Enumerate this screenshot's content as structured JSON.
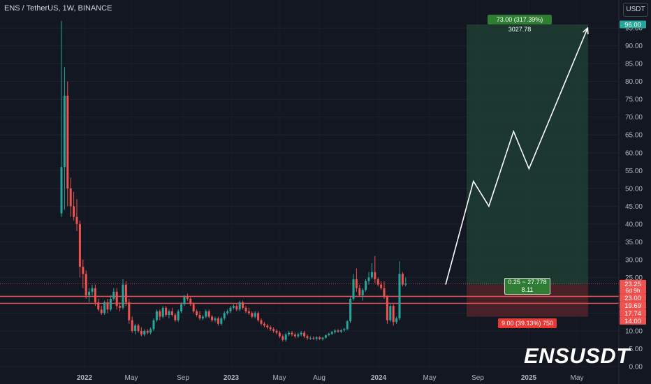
{
  "header": {
    "symbol_title": "ENS / TetherUS, 1W, BINANCE"
  },
  "currency_button": "USDT",
  "watermark": "ENSUSDT",
  "chart_data": {
    "type": "candlestick",
    "title": "ENS / TetherUS, 1W, BINANCE",
    "y_axis": {
      "ticks": [
        "0.00",
        "5.00",
        "10.00",
        "15.00",
        "20.00",
        "25.00",
        "30.00",
        "35.00",
        "40.00",
        "45.00",
        "50.00",
        "55.00",
        "60.00",
        "65.00",
        "70.00",
        "75.00",
        "80.00",
        "85.00",
        "90.00",
        "95.00"
      ],
      "range": [
        -0.5,
        98
      ]
    },
    "x_axis": {
      "ticks": [
        "2022",
        "May",
        "Sep",
        "2023",
        "May",
        "Aug",
        "2024",
        "May",
        "Sep",
        "2025",
        "May"
      ]
    },
    "colors": {
      "up": "#26a69a",
      "down": "#ef5350",
      "profit_zone": "#1e3d33",
      "loss_zone": "#4a2228",
      "accent_green": "#2e7d32",
      "accent_red": "#e53935",
      "arrow": "#ffffff"
    },
    "price_markers": [
      {
        "price": 96.0,
        "label": "96.00",
        "color": "#26a69a"
      },
      {
        "price": 23.25,
        "label": "23.25",
        "sublabel": "6d 9h",
        "color": "#ef5350"
      },
      {
        "price": 23.0,
        "label": "23.00",
        "color": "#ef5350"
      },
      {
        "price": 19.69,
        "label": "19.69",
        "color": "#ef5350"
      },
      {
        "price": 17.74,
        "label": "17.74",
        "color": "#ef5350"
      },
      {
        "price": 14.0,
        "label": "14.00",
        "color": "#ef5350"
      }
    ],
    "horizontal_lines": [
      {
        "price": 19.69,
        "color": "#ef5350"
      },
      {
        "price": 17.74,
        "color": "#ef5350"
      }
    ],
    "dotted_line": {
      "price": 23.25,
      "color": "#ef5350"
    },
    "position_tool": {
      "entry": 23.0,
      "target": 96.0,
      "stop": 14.0,
      "target_label": "73.00 (317.39%) 3027.78",
      "stop_label": "9.00 (39.13%) 750",
      "ratio_label": "0.25 ~ 27.778",
      "ratio_sublabel": "8.11"
    },
    "projection_path": [
      {
        "date": "2024-06-12",
        "price": 23.0
      },
      {
        "date": "2024-08-14",
        "price": 52.0
      },
      {
        "date": "2024-09-18",
        "price": 45.0
      },
      {
        "date": "2024-11-13",
        "price": 66.0
      },
      {
        "date": "2024-12-18",
        "price": 55.5
      },
      {
        "date": "2025-04-30",
        "price": 95.0
      }
    ],
    "candles": [
      [
        43.0,
        97.0,
        42.0,
        56.0
      ],
      [
        56.0,
        84.0,
        44.0,
        76.0
      ],
      [
        76.0,
        80.0,
        45.0,
        50.0
      ],
      [
        50.0,
        53.0,
        42.0,
        45.0
      ],
      [
        45.0,
        49.0,
        41.0,
        42.0
      ],
      [
        42.0,
        47.0,
        38.0,
        40.0
      ],
      [
        40.0,
        41.0,
        25.0,
        28.0
      ],
      [
        28.0,
        30.0,
        22.0,
        26.0
      ],
      [
        26.0,
        27.0,
        19.0,
        20.0
      ],
      [
        20.0,
        22.0,
        18.0,
        21.0
      ],
      [
        21.0,
        23.0,
        20.0,
        22.0
      ],
      [
        22.0,
        23.0,
        17.0,
        18.0
      ],
      [
        18.0,
        19.0,
        15.5,
        16.0
      ],
      [
        16.0,
        17.0,
        14.5,
        15.0
      ],
      [
        15.0,
        18.5,
        14.5,
        18.0
      ],
      [
        18.0,
        19.0,
        15.0,
        16.0
      ],
      [
        16.0,
        20.0,
        15.5,
        19.0
      ],
      [
        19.0,
        22.0,
        18.5,
        21.0
      ],
      [
        21.0,
        22.0,
        16.0,
        17.0
      ],
      [
        17.0,
        18.0,
        15.5,
        16.5
      ],
      [
        16.5,
        24.5,
        16.0,
        23.0
      ],
      [
        23.0,
        24.0,
        17.0,
        18.0
      ],
      [
        18.0,
        19.0,
        12.0,
        13.0
      ],
      [
        13.0,
        14.0,
        9.5,
        10.0
      ],
      [
        10.0,
        12.0,
        9.0,
        11.5
      ],
      [
        11.5,
        12.0,
        9.5,
        10.0
      ],
      [
        10.0,
        11.0,
        8.5,
        9.0
      ],
      [
        9.0,
        10.5,
        8.5,
        10.0
      ],
      [
        10.0,
        10.5,
        9.0,
        9.5
      ],
      [
        9.5,
        11.0,
        9.0,
        10.5
      ],
      [
        10.5,
        13.5,
        10.0,
        13.0
      ],
      [
        13.0,
        16.0,
        12.5,
        15.5
      ],
      [
        15.5,
        16.0,
        13.0,
        14.0
      ],
      [
        14.0,
        17.0,
        13.5,
        16.5
      ],
      [
        16.5,
        17.0,
        14.0,
        14.5
      ],
      [
        14.5,
        16.0,
        13.5,
        15.5
      ],
      [
        15.5,
        16.5,
        14.0,
        14.5
      ],
      [
        14.5,
        15.0,
        12.5,
        13.0
      ],
      [
        13.0,
        16.0,
        12.5,
        15.5
      ],
      [
        15.5,
        18.0,
        15.0,
        17.5
      ],
      [
        17.5,
        20.0,
        17.0,
        19.5
      ],
      [
        19.5,
        20.5,
        18.5,
        19.0
      ],
      [
        19.0,
        19.5,
        17.0,
        17.5
      ],
      [
        17.5,
        18.0,
        15.0,
        15.5
      ],
      [
        15.5,
        16.0,
        14.0,
        14.5
      ],
      [
        14.5,
        15.5,
        13.0,
        13.5
      ],
      [
        13.5,
        14.5,
        13.0,
        14.0
      ],
      [
        14.0,
        16.0,
        13.5,
        15.5
      ],
      [
        15.5,
        16.0,
        13.5,
        14.0
      ],
      [
        14.0,
        14.5,
        12.5,
        13.0
      ],
      [
        13.0,
        14.0,
        12.5,
        13.5
      ],
      [
        13.5,
        14.0,
        11.5,
        12.0
      ],
      [
        12.0,
        14.0,
        11.5,
        13.5
      ],
      [
        13.5,
        15.5,
        13.0,
        15.0
      ],
      [
        15.0,
        16.0,
        14.5,
        15.5
      ],
      [
        15.5,
        17.0,
        15.0,
        16.5
      ],
      [
        16.5,
        17.5,
        16.0,
        17.0
      ],
      [
        17.0,
        17.5,
        15.5,
        16.0
      ],
      [
        16.0,
        18.5,
        15.5,
        18.0
      ],
      [
        18.0,
        18.5,
        16.0,
        16.5
      ],
      [
        16.5,
        17.0,
        15.0,
        15.5
      ],
      [
        15.5,
        16.5,
        14.5,
        15.0
      ],
      [
        15.0,
        15.5,
        13.5,
        14.0
      ],
      [
        14.0,
        15.5,
        13.5,
        15.0
      ],
      [
        15.0,
        15.5,
        12.5,
        13.0
      ],
      [
        13.0,
        13.5,
        11.5,
        12.0
      ],
      [
        12.0,
        12.5,
        11.0,
        11.5
      ],
      [
        11.5,
        12.0,
        10.5,
        11.0
      ],
      [
        11.0,
        11.5,
        10.0,
        10.5
      ],
      [
        10.5,
        11.0,
        9.5,
        10.0
      ],
      [
        10.0,
        10.5,
        9.0,
        9.5
      ],
      [
        9.5,
        10.0,
        8.0,
        8.5
      ],
      [
        8.5,
        9.0,
        7.0,
        7.5
      ],
      [
        7.5,
        9.5,
        7.0,
        9.0
      ],
      [
        9.0,
        10.0,
        8.5,
        9.5
      ],
      [
        9.5,
        10.0,
        8.5,
        9.0
      ],
      [
        9.0,
        9.5,
        8.0,
        8.5
      ],
      [
        8.5,
        9.5,
        8.0,
        9.0
      ],
      [
        9.0,
        10.0,
        8.5,
        9.5
      ],
      [
        9.5,
        10.0,
        8.0,
        8.5
      ],
      [
        8.5,
        9.0,
        7.5,
        8.0
      ],
      [
        8.0,
        8.5,
        7.5,
        8.0
      ],
      [
        8.0,
        8.5,
        7.5,
        7.8
      ],
      [
        7.8,
        8.5,
        7.3,
        8.2
      ],
      [
        8.2,
        8.5,
        7.5,
        7.7
      ],
      [
        7.7,
        8.3,
        7.3,
        8.1
      ],
      [
        8.1,
        9.0,
        7.8,
        8.8
      ],
      [
        8.8,
        9.5,
        8.5,
        9.2
      ],
      [
        9.2,
        10.0,
        8.8,
        9.7
      ],
      [
        9.7,
        10.5,
        9.2,
        10.1
      ],
      [
        10.1,
        10.5,
        9.5,
        9.8
      ],
      [
        9.8,
        10.5,
        9.4,
        10.2
      ],
      [
        10.2,
        10.8,
        9.8,
        10.5
      ],
      [
        10.5,
        13.0,
        10.2,
        12.7
      ],
      [
        12.7,
        19.5,
        12.2,
        19.0
      ],
      [
        19.0,
        26.0,
        18.5,
        24.5
      ],
      [
        24.5,
        27.5,
        21.0,
        22.0
      ],
      [
        22.0,
        23.0,
        19.5,
        20.0
      ],
      [
        20.0,
        22.0,
        18.5,
        21.5
      ],
      [
        21.5,
        24.5,
        21.0,
        24.0
      ],
      [
        24.0,
        26.5,
        23.0,
        25.0
      ],
      [
        25.0,
        29.0,
        24.5,
        26.5
      ],
      [
        26.5,
        31.0,
        23.5,
        24.5
      ],
      [
        24.5,
        25.0,
        22.5,
        23.0
      ],
      [
        23.0,
        24.0,
        21.5,
        22.0
      ],
      [
        22.0,
        24.0,
        19.0,
        19.5
      ],
      [
        19.5,
        20.0,
        12.0,
        13.0
      ],
      [
        13.0,
        17.5,
        12.5,
        17.0
      ],
      [
        17.0,
        17.5,
        11.5,
        12.5
      ],
      [
        12.5,
        14.0,
        12.0,
        13.5
      ],
      [
        13.5,
        29.5,
        13.0,
        26.0
      ],
      [
        26.0,
        26.5,
        22.5,
        23.0
      ],
      [
        23.0,
        25.0,
        22.5,
        23.25
      ]
    ]
  }
}
